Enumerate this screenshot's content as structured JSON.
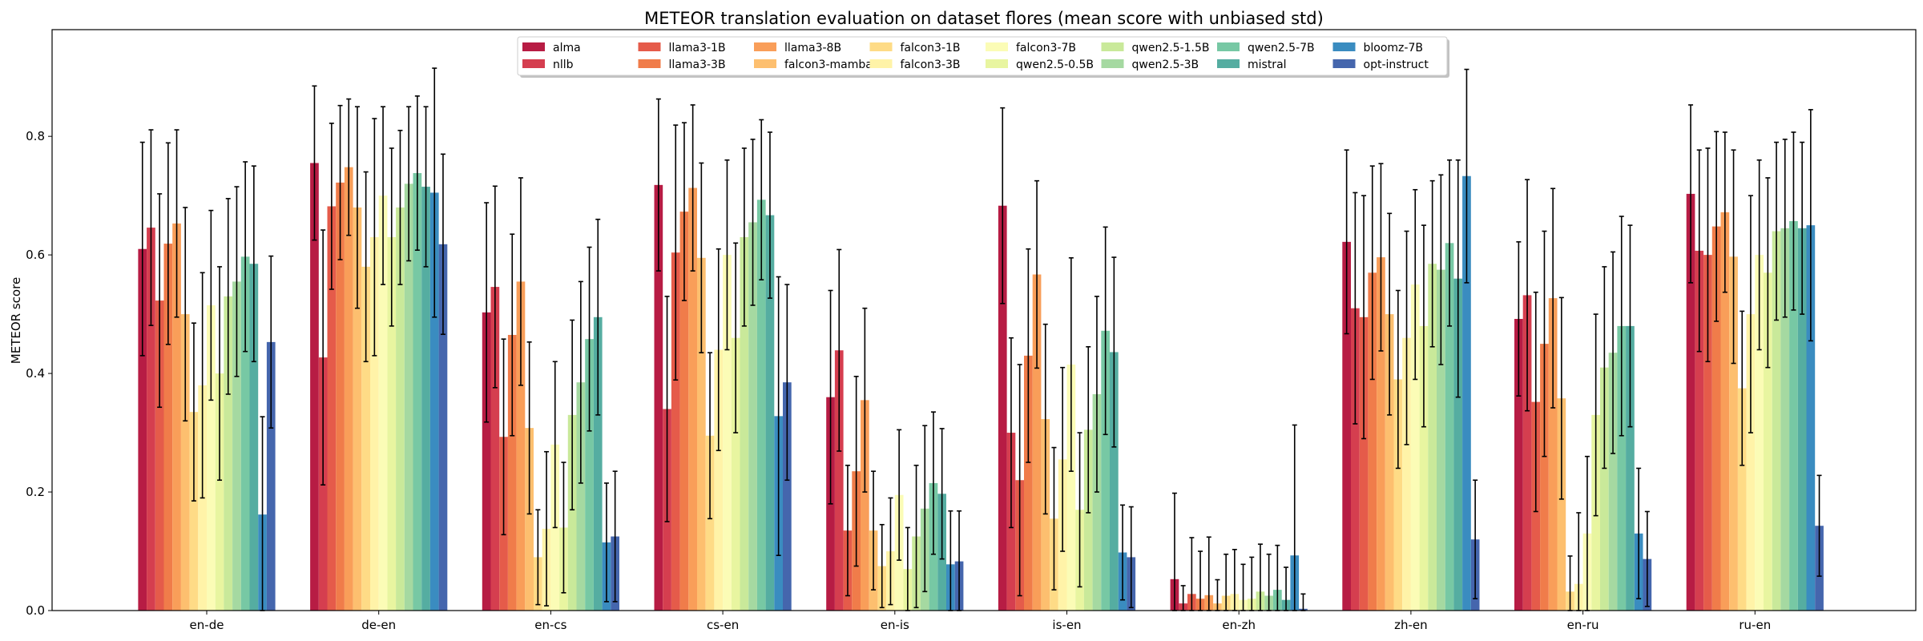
{
  "chart_data": {
    "type": "bar",
    "title": "METEOR translation evaluation on dataset flores (mean score with unbiased std)",
    "xlabel": "",
    "ylabel": "METEOR score",
    "ylim": [
      0,
      0.98
    ],
    "yticks": [
      "0.0",
      "0.2",
      "0.4",
      "0.6",
      "0.8"
    ],
    "grid": false,
    "legend_position": "top-center",
    "categories": [
      "en-de",
      "de-en",
      "en-cs",
      "cs-en",
      "en-is",
      "is-en",
      "en-zh",
      "zh-en",
      "en-ru",
      "ru-en"
    ],
    "series": [
      {
        "name": "alma",
        "color": "#b71c44",
        "values": [
          0.61,
          0.755,
          0.503,
          0.718,
          0.36,
          0.683,
          0.053,
          0.622,
          0.492,
          0.703
        ],
        "std": [
          0.18,
          0.13,
          0.185,
          0.145,
          0.18,
          0.165,
          0.145,
          0.155,
          0.13,
          0.15
        ]
      },
      {
        "name": "nllb",
        "color": "#d53e4f",
        "values": [
          0.646,
          0.427,
          0.546,
          0.34,
          0.439,
          0.3,
          0.012,
          0.51,
          0.532,
          0.607
        ],
        "std": [
          0.165,
          0.215,
          0.17,
          0.19,
          0.17,
          0.16,
          0.03,
          0.195,
          0.195,
          0.17
        ]
      },
      {
        "name": "llama3-1B",
        "color": "#e55b4a",
        "values": [
          0.523,
          0.682,
          0.293,
          0.604,
          0.135,
          0.22,
          0.028,
          0.495,
          0.352,
          0.6
        ],
        "std": [
          0.18,
          0.14,
          0.165,
          0.215,
          0.11,
          0.195,
          0.095,
          0.205,
          0.185,
          0.18
        ]
      },
      {
        "name": "llama3-3B",
        "color": "#f07c4a",
        "values": [
          0.619,
          0.722,
          0.465,
          0.673,
          0.235,
          0.43,
          0.02,
          0.57,
          0.45,
          0.648
        ],
        "std": [
          0.17,
          0.13,
          0.17,
          0.15,
          0.16,
          0.18,
          0.08,
          0.18,
          0.19,
          0.16
        ]
      },
      {
        "name": "llama3-8B",
        "color": "#f99e59",
        "values": [
          0.653,
          0.748,
          0.555,
          0.713,
          0.355,
          0.567,
          0.026,
          0.596,
          0.527,
          0.672
        ],
        "std": [
          0.158,
          0.115,
          0.175,
          0.14,
          0.155,
          0.158,
          0.098,
          0.158,
          0.185,
          0.135
        ]
      },
      {
        "name": "falcon3-mamba",
        "color": "#fdbf6f",
        "values": [
          0.5,
          0.68,
          0.308,
          0.595,
          0.135,
          0.323,
          0.012,
          0.5,
          0.358,
          0.597
        ],
        "std": [
          0.18,
          0.17,
          0.145,
          0.16,
          0.1,
          0.16,
          0.04,
          0.17,
          0.17,
          0.18
        ]
      },
      {
        "name": "falcon3-1B",
        "color": "#fedb86",
        "values": [
          0.335,
          0.58,
          0.09,
          0.295,
          0.075,
          0.155,
          0.025,
          0.39,
          0.032,
          0.375
        ],
        "std": [
          0.15,
          0.16,
          0.08,
          0.14,
          0.07,
          0.12,
          0.07,
          0.15,
          0.06,
          0.13
        ]
      },
      {
        "name": "falcon3-3B",
        "color": "#fff3a8",
        "values": [
          0.38,
          0.63,
          0.138,
          0.44,
          0.1,
          0.255,
          0.028,
          0.46,
          0.045,
          0.5
        ],
        "std": [
          0.19,
          0.2,
          0.13,
          0.17,
          0.09,
          0.155,
          0.075,
          0.18,
          0.12,
          0.2
        ]
      },
      {
        "name": "falcon3-7B",
        "color": "#fbfcb6",
        "values": [
          0.515,
          0.7,
          0.28,
          0.6,
          0.195,
          0.415,
          0.018,
          0.55,
          0.13,
          0.6
        ],
        "std": [
          0.16,
          0.15,
          0.14,
          0.16,
          0.11,
          0.18,
          0.06,
          0.16,
          0.13,
          0.16
        ]
      },
      {
        "name": "qwen2.5-0.5B",
        "color": "#e8f5a0",
        "values": [
          0.4,
          0.63,
          0.14,
          0.46,
          0.07,
          0.17,
          0.02,
          0.48,
          0.33,
          0.57
        ],
        "std": [
          0.18,
          0.15,
          0.11,
          0.16,
          0.07,
          0.13,
          0.07,
          0.17,
          0.17,
          0.16
        ]
      },
      {
        "name": "qwen2.5-1.5B",
        "color": "#c9e99a",
        "values": [
          0.53,
          0.68,
          0.33,
          0.63,
          0.125,
          0.305,
          0.032,
          0.585,
          0.41,
          0.64
        ],
        "std": [
          0.165,
          0.13,
          0.16,
          0.15,
          0.12,
          0.14,
          0.08,
          0.14,
          0.17,
          0.15
        ]
      },
      {
        "name": "qwen2.5-3B",
        "color": "#a5d9a1",
        "values": [
          0.555,
          0.72,
          0.385,
          0.655,
          0.172,
          0.365,
          0.025,
          0.575,
          0.435,
          0.645
        ],
        "std": [
          0.16,
          0.13,
          0.17,
          0.14,
          0.14,
          0.165,
          0.07,
          0.16,
          0.17,
          0.15
        ]
      },
      {
        "name": "qwen2.5-7B",
        "color": "#77c8a4",
        "values": [
          0.597,
          0.738,
          0.458,
          0.693,
          0.215,
          0.472,
          0.035,
          0.62,
          0.48,
          0.657
        ],
        "std": [
          0.16,
          0.13,
          0.155,
          0.135,
          0.12,
          0.175,
          0.075,
          0.14,
          0.185,
          0.15
        ]
      },
      {
        "name": "mistral",
        "color": "#55ada1",
        "values": [
          0.585,
          0.715,
          0.495,
          0.667,
          0.197,
          0.436,
          0.018,
          0.56,
          0.48,
          0.645
        ],
        "std": [
          0.165,
          0.135,
          0.165,
          0.14,
          0.11,
          0.16,
          0.055,
          0.2,
          0.17,
          0.145
        ]
      },
      {
        "name": "bloomz-7B",
        "color": "#3a8cc0",
        "values": [
          0.162,
          0.705,
          0.115,
          0.328,
          0.078,
          0.098,
          0.093,
          0.733,
          0.13,
          0.65
        ],
        "std": [
          0.165,
          0.21,
          0.1,
          0.235,
          0.09,
          0.08,
          0.22,
          0.18,
          0.11,
          0.195
        ]
      },
      {
        "name": "opt-instruct",
        "color": "#4566ad",
        "values": [
          0.453,
          0.618,
          0.125,
          0.385,
          0.083,
          0.09,
          0.003,
          0.12,
          0.087,
          0.143
        ],
        "std": [
          0.145,
          0.152,
          0.11,
          0.165,
          0.085,
          0.085,
          0.025,
          0.1,
          0.08,
          0.085
        ]
      }
    ]
  }
}
